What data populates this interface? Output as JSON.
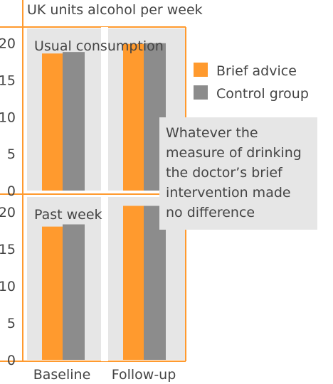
{
  "chart_data": {
    "type": "bar",
    "title": "UK units alcohol per week",
    "categories": [
      "Baseline",
      "Follow-up"
    ],
    "ylim": [
      0,
      22
    ],
    "yticks": [
      0,
      5,
      10,
      15,
      20
    ],
    "grid": false,
    "legend_position": "right",
    "legend": [
      {
        "name": "Brief advice",
        "color": "#ff9a2e"
      },
      {
        "name": "Control group",
        "color": "#8c8c8c"
      }
    ],
    "panels": [
      {
        "title": "Usual consumption",
        "series": [
          {
            "name": "Brief advice",
            "values": [
              18.6,
              19.9
            ]
          },
          {
            "name": "Control group",
            "values": [
              18.8,
              20.0
            ]
          }
        ]
      },
      {
        "title": "Past week",
        "series": [
          {
            "name": "Brief advice",
            "values": [
              18.0,
              20.8
            ]
          },
          {
            "name": "Control group",
            "values": [
              18.3,
              20.8
            ]
          }
        ]
      }
    ],
    "annotation": [
      "Whatever the",
      "measure of drinking",
      "the doctor’s brief",
      "intervention made",
      "no difference"
    ],
    "colors": {
      "accent": "#ff9a2e",
      "control": "#8c8c8c",
      "panel_bg": "#e6e6e6",
      "frame": "#ff9a2e",
      "note_bg": "#e6e6e6"
    }
  }
}
